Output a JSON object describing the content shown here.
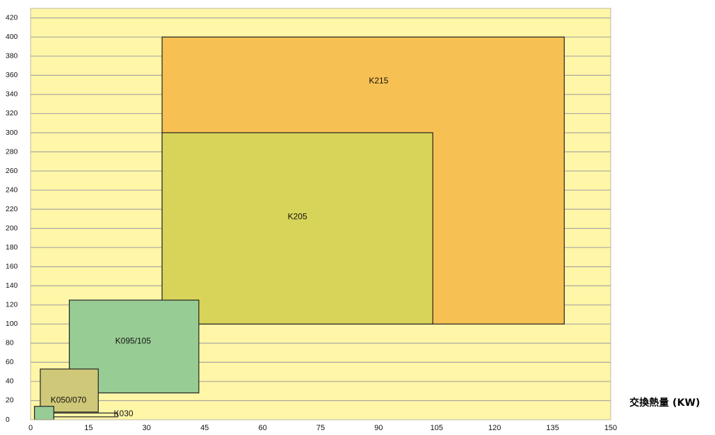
{
  "chart_data": {
    "type": "range-rectangles",
    "title": "",
    "xlabel": "交換熱量 (KW)",
    "ylabel": "",
    "xlim": [
      0,
      150
    ],
    "ylim": [
      0,
      430
    ],
    "x_ticks": [
      0,
      15,
      30,
      45,
      60,
      75,
      90,
      105,
      120,
      135,
      150
    ],
    "y_ticks": [
      0,
      20,
      40,
      60,
      80,
      100,
      120,
      140,
      160,
      180,
      200,
      220,
      240,
      260,
      280,
      300,
      320,
      340,
      360,
      380,
      400,
      420
    ],
    "grid": true,
    "background_color": "#fff6a8",
    "series": [
      {
        "name": "K215",
        "x_range": [
          34,
          138
        ],
        "y_range": [
          100,
          400
        ],
        "color": "#f7c052"
      },
      {
        "name": "K205",
        "x_range": [
          34,
          104
        ],
        "y_range": [
          100,
          300
        ],
        "color": "#d8d45a"
      },
      {
        "name": "K095/105",
        "x_range": [
          10,
          43.5
        ],
        "y_range": [
          28,
          125
        ],
        "color": "#98cc95"
      },
      {
        "name": "K050/070",
        "x_range": [
          2.5,
          17.5
        ],
        "y_range": [
          8,
          53
        ],
        "color": "#cfc878"
      },
      {
        "name": "K030",
        "x_range": [
          5,
          22.5
        ],
        "y_range": [
          3,
          7
        ],
        "color": "#fff6a8"
      },
      {
        "name": "",
        "x_range": [
          1,
          6
        ],
        "y_range": [
          0,
          14
        ],
        "color": "#98cc95"
      }
    ]
  }
}
